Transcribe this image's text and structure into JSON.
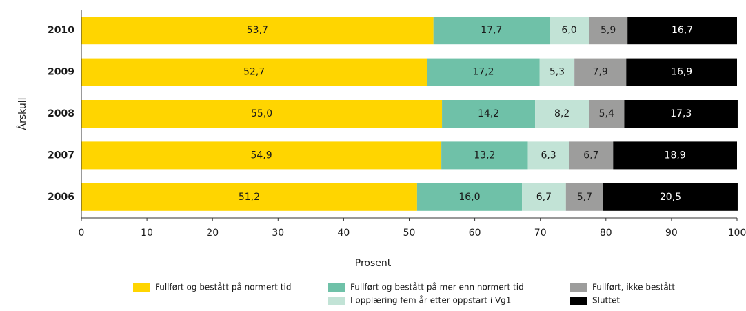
{
  "chart_data": {
    "type": "stacked-bar-horizontal",
    "xlabel": "Prosent",
    "ylabel": "Årskull",
    "categories": [
      "2010",
      "2009",
      "2008",
      "2007",
      "2006"
    ],
    "xlim": [
      0,
      100
    ],
    "xticks": [
      0,
      10,
      20,
      30,
      40,
      50,
      60,
      70,
      80,
      90,
      100
    ],
    "series": [
      {
        "name": "Fullført og bestått på normert tid",
        "color": "#ffd500",
        "values": [
          53.7,
          52.7,
          55.0,
          54.9,
          51.2
        ],
        "value_labels": [
          "53,7",
          "52,7",
          "55,0",
          "54,9",
          "51,2"
        ]
      },
      {
        "name": "Fullført og bestått på mer enn normert tid",
        "color": "#6fc1a8",
        "values": [
          17.7,
          17.2,
          14.2,
          13.2,
          16.0
        ],
        "value_labels": [
          "17,7",
          "17,2",
          "14,2",
          "13,2",
          "16,0"
        ]
      },
      {
        "name": "I opplæring fem år etter oppstart i Vg1",
        "color": "#c2e3d6",
        "values": [
          6.0,
          5.3,
          8.2,
          6.3,
          6.7
        ],
        "value_labels": [
          "6,0",
          "5,3",
          "8,2",
          "6,3",
          "6,7"
        ]
      },
      {
        "name": "Fullført, ikke bestått",
        "color": "#9d9d9c",
        "values": [
          5.9,
          7.9,
          5.4,
          6.7,
          5.7
        ],
        "value_labels": [
          "5,9",
          "7,9",
          "5,4",
          "6,7",
          "5,7"
        ]
      },
      {
        "name": "Sluttet",
        "color": "#000000",
        "values": [
          16.7,
          16.9,
          17.3,
          18.9,
          20.5
        ],
        "value_labels": [
          "16,7",
          "16,9",
          "17,3",
          "18,9",
          "20,5"
        ]
      }
    ]
  }
}
